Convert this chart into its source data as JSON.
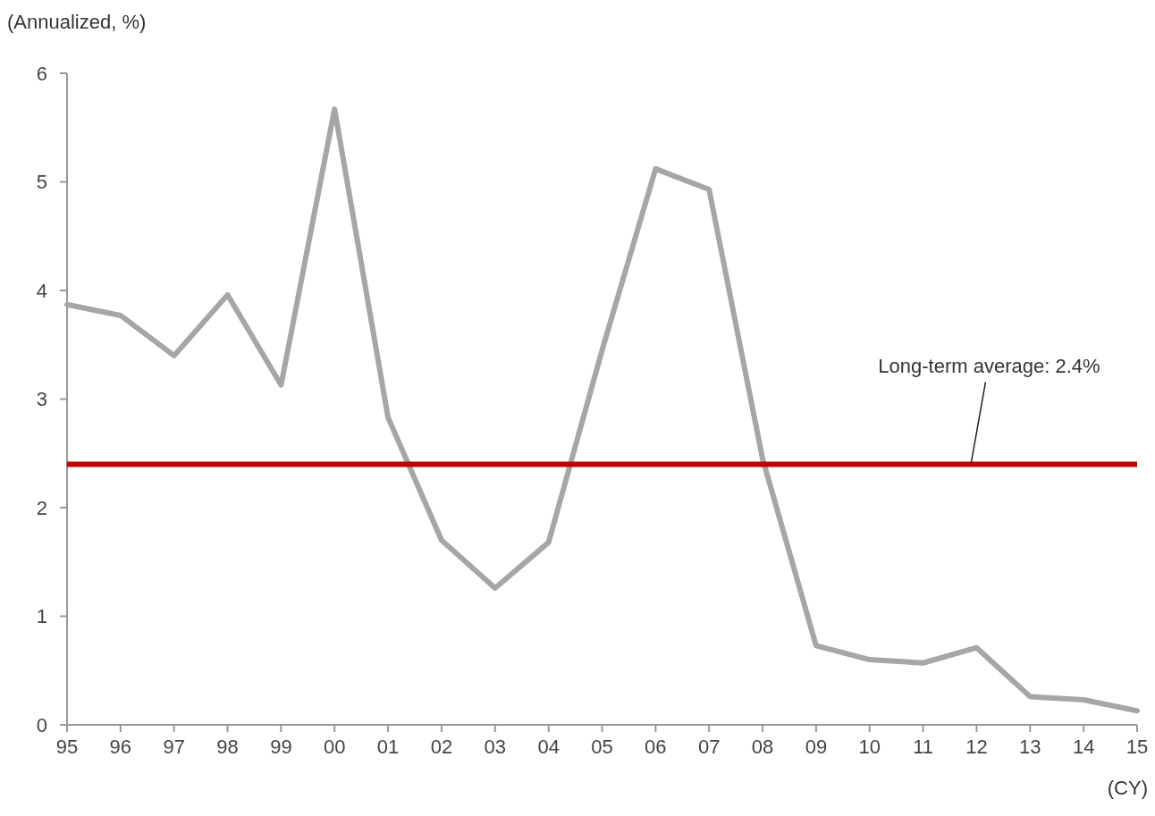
{
  "chart_data": {
    "type": "line",
    "ylabel": "(Annualized, %)",
    "xlabel": "(CY)",
    "categories": [
      "95",
      "96",
      "97",
      "98",
      "99",
      "00",
      "01",
      "02",
      "03",
      "04",
      "05",
      "06",
      "07",
      "08",
      "09",
      "10",
      "11",
      "12",
      "13",
      "14",
      "15"
    ],
    "series": [
      {
        "color": "#a6a6a6",
        "values": [
          3.87,
          3.77,
          3.4,
          3.96,
          3.13,
          5.67,
          2.83,
          1.7,
          1.26,
          1.68,
          3.45,
          5.12,
          4.93,
          2.45,
          0.73,
          0.6,
          0.57,
          0.71,
          0.26,
          0.23,
          0.13
        ]
      }
    ],
    "ylim": [
      0,
      6
    ],
    "yticks": [
      0,
      1,
      2,
      3,
      4,
      5,
      6
    ],
    "grid": false,
    "marker": "none",
    "line_style": "solid",
    "ref_lines": [
      {
        "axis": "y",
        "value": 2.4,
        "label": "Long-term average: 2.4%",
        "color": "#c00000",
        "line_style": "solid"
      }
    ]
  }
}
